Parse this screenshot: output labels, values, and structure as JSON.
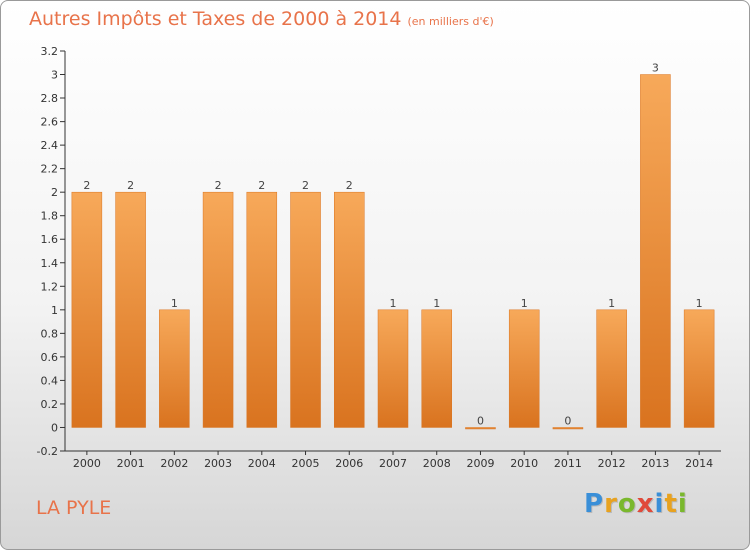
{
  "header": {
    "title": "Autres Impôts et Taxes de 2000 à 2014",
    "subtitle": "(en milliers d'€)"
  },
  "commune": {
    "name": "LA PYLE"
  },
  "logo": {
    "letters": [
      "P",
      "r",
      "o",
      "x",
      "i",
      "t",
      "i"
    ],
    "colors": [
      "#3a8fd8",
      "#e8a21f",
      "#7ab82d",
      "#e04a3a",
      "#3a8fd8",
      "#e8a21f",
      "#7ab82d"
    ]
  },
  "chart_data": {
    "type": "bar",
    "categories": [
      "2000",
      "2001",
      "2002",
      "2003",
      "2004",
      "2005",
      "2006",
      "2007",
      "2008",
      "2009",
      "2010",
      "2011",
      "2012",
      "2013",
      "2014"
    ],
    "values": [
      2,
      2,
      1,
      2,
      2,
      2,
      2,
      1,
      1,
      0,
      1,
      0,
      1,
      3,
      1
    ],
    "data_labels": [
      "2",
      "2",
      "1",
      "2",
      "2",
      "2",
      "2",
      "1",
      "1",
      "0",
      "1",
      "0",
      "1",
      "3",
      "1"
    ],
    "y_ticks": [
      -0.2,
      0,
      0.2,
      0.4,
      0.6,
      0.8,
      1,
      1.2,
      1.4,
      1.6,
      1.8,
      2,
      2.2,
      2.4,
      2.6,
      2.8,
      3,
      3.2
    ],
    "y_tick_labels": [
      "-0.2",
      "0",
      "0.2",
      "0.4",
      "0.6",
      "0.8",
      "1",
      "1.2",
      "1.4",
      "1.6",
      "1.8",
      "2",
      "2.2",
      "2.4",
      "2.6",
      "2.8",
      "3",
      "3.2"
    ],
    "ylim": [
      -0.2,
      3.2
    ],
    "grid": false,
    "colors": {
      "bar_light": "#f7a95a",
      "bar_dark": "#d9731f",
      "axis": "#333333"
    }
  }
}
